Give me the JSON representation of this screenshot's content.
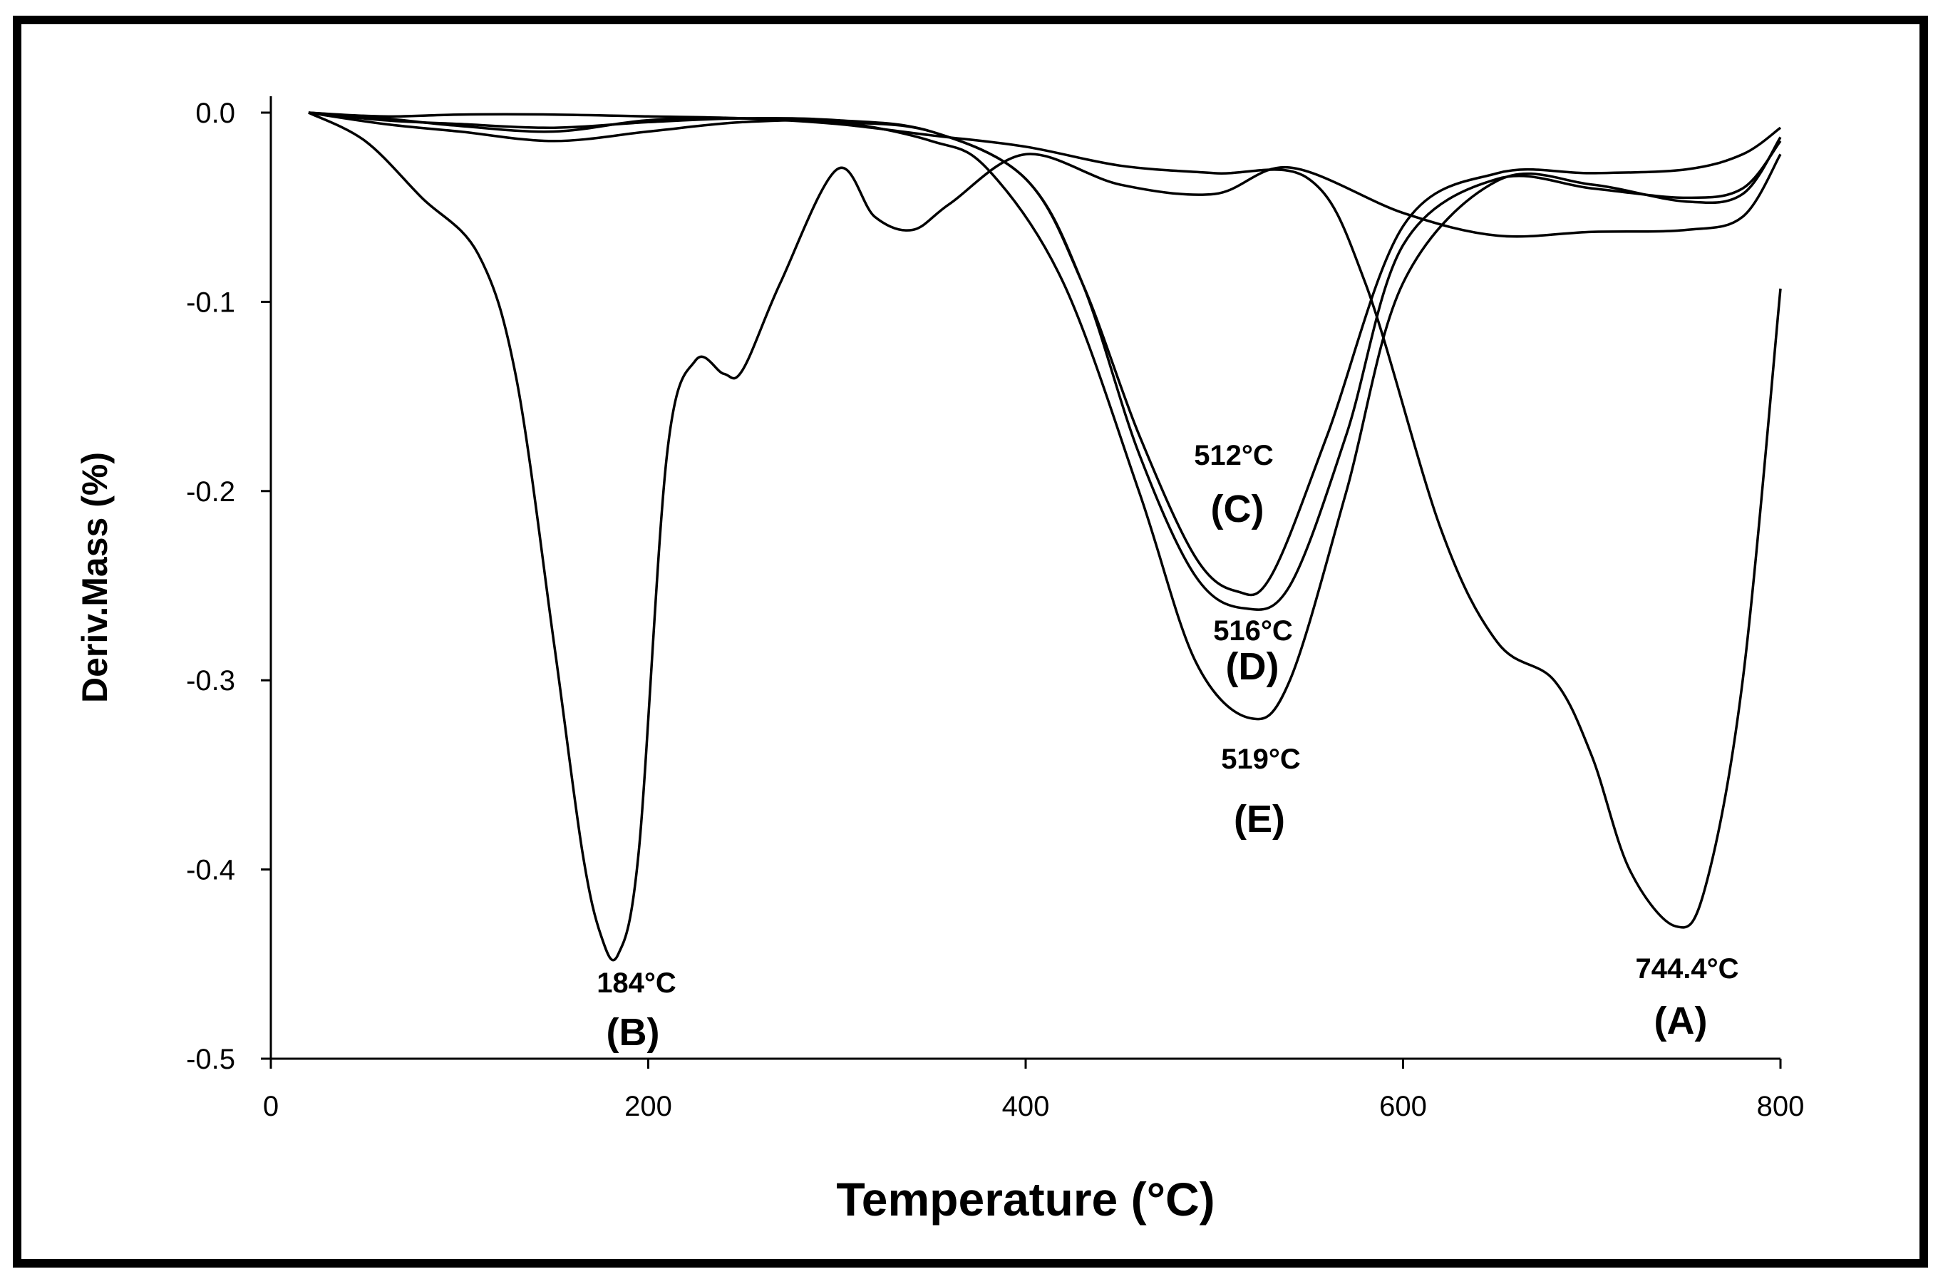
{
  "chart_data": {
    "type": "line",
    "title": "",
    "xlabel": "Temperature (°C)",
    "ylabel": "Deriv.Mass (%)",
    "xlim": [
      0,
      800
    ],
    "ylim": [
      -0.5,
      0.0
    ],
    "xticks": [
      0,
      200,
      400,
      600,
      800
    ],
    "xtick_labels": [
      "0",
      "200",
      "400",
      "600",
      "800"
    ],
    "yticks": [
      0.0,
      -0.1,
      -0.2,
      -0.3,
      -0.4,
      -0.5
    ],
    "ytick_labels": [
      "0.0",
      "-0.1",
      "-0.2",
      "-0.3",
      "-0.4",
      "-0.5"
    ],
    "grid": false,
    "series": [
      {
        "name": "(A)",
        "peak_label": "744.4°C",
        "x": [
          20,
          60,
          100,
          150,
          200,
          250,
          300,
          350,
          400,
          450,
          500,
          550,
          580,
          620,
          650,
          680,
          700,
          720,
          744.4,
          760,
          780,
          800
        ],
        "y": [
          0.0,
          -0.002,
          -0.001,
          -0.001,
          -0.002,
          -0.003,
          -0.006,
          -0.012,
          -0.018,
          -0.028,
          -0.032,
          -0.035,
          -0.09,
          -0.22,
          -0.28,
          -0.3,
          -0.34,
          -0.4,
          -0.43,
          -0.41,
          -0.3,
          -0.093
        ]
      },
      {
        "name": "(B)",
        "peak_label": "184°C",
        "x": [
          20,
          50,
          80,
          110,
          130,
          150,
          165,
          175,
          184,
          195,
          210,
          225,
          240,
          250,
          270,
          300,
          320,
          340,
          360,
          400,
          450,
          500,
          540,
          600,
          650,
          700,
          750,
          780,
          800
        ],
        "y": [
          0.0,
          -0.015,
          -0.045,
          -0.075,
          -0.14,
          -0.28,
          -0.39,
          -0.435,
          -0.445,
          -0.39,
          -0.18,
          -0.131,
          -0.138,
          -0.136,
          -0.09,
          -0.03,
          -0.055,
          -0.062,
          -0.048,
          -0.022,
          -0.038,
          -0.043,
          -0.029,
          -0.053,
          -0.065,
          -0.063,
          -0.062,
          -0.055,
          -0.022
        ]
      },
      {
        "name": "(C)",
        "peak_label": "512°C",
        "x": [
          20,
          60,
          100,
          150,
          200,
          250,
          300,
          350,
          400,
          430,
          460,
          490,
          512,
          530,
          560,
          600,
          650,
          700,
          750,
          780,
          800
        ],
        "y": [
          0.0,
          -0.004,
          -0.006,
          -0.008,
          -0.005,
          -0.003,
          -0.004,
          -0.01,
          -0.035,
          -0.09,
          -0.17,
          -0.235,
          -0.253,
          -0.245,
          -0.17,
          -0.06,
          -0.032,
          -0.032,
          -0.03,
          -0.022,
          -0.008
        ]
      },
      {
        "name": "(D)",
        "peak_label": "516°C",
        "x": [
          20,
          60,
          100,
          150,
          200,
          250,
          300,
          350,
          400,
          430,
          460,
          490,
          516,
          540,
          570,
          600,
          650,
          700,
          750,
          780,
          800
        ],
        "y": [
          0.0,
          -0.003,
          -0.007,
          -0.01,
          -0.004,
          -0.003,
          -0.005,
          -0.01,
          -0.035,
          -0.09,
          -0.18,
          -0.245,
          -0.262,
          -0.25,
          -0.17,
          -0.07,
          -0.035,
          -0.04,
          -0.045,
          -0.04,
          -0.015
        ]
      },
      {
        "name": "(E)",
        "peak_label": "519°C",
        "x": [
          20,
          60,
          100,
          150,
          200,
          250,
          300,
          350,
          380,
          420,
          460,
          490,
          519,
          540,
          570,
          600,
          650,
          700,
          750,
          780,
          800
        ],
        "y": [
          0.0,
          -0.006,
          -0.01,
          -0.015,
          -0.01,
          -0.005,
          -0.005,
          -0.015,
          -0.03,
          -0.09,
          -0.2,
          -0.29,
          -0.32,
          -0.3,
          -0.2,
          -0.09,
          -0.036,
          -0.038,
          -0.047,
          -0.043,
          -0.013
        ]
      }
    ]
  }
}
